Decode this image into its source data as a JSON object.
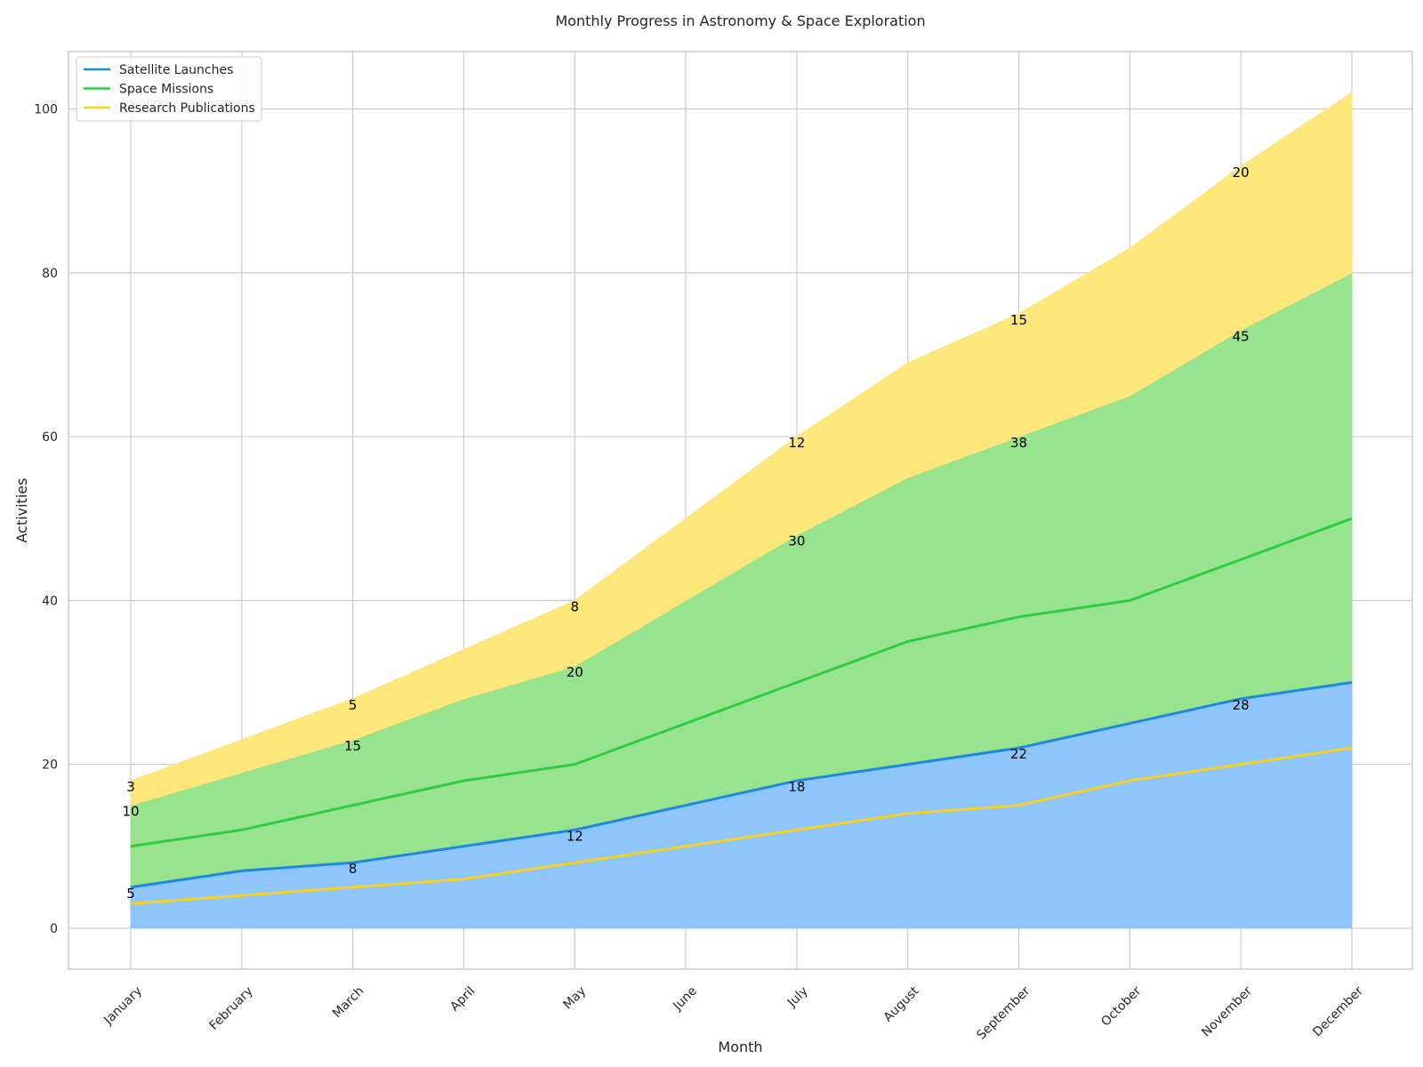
{
  "chart_data": {
    "type": "area",
    "stacked": true,
    "title": "Monthly Progress in Astronomy & Space Exploration",
    "xlabel": "Month",
    "ylabel": "Activities",
    "categories": [
      "January",
      "February",
      "March",
      "April",
      "May",
      "June",
      "July",
      "August",
      "September",
      "October",
      "November",
      "December"
    ],
    "ylim": [
      -5,
      107
    ],
    "yticks": [
      0,
      20,
      40,
      60,
      80,
      100
    ],
    "grid": true,
    "legend_position": "top-left",
    "series": [
      {
        "name": "Satellite Launches",
        "values": [
          5,
          7,
          8,
          10,
          12,
          15,
          18,
          20,
          22,
          25,
          28,
          30
        ],
        "color": "#1e88e5",
        "fill": "#8ec6fb"
      },
      {
        "name": "Space Missions",
        "values": [
          10,
          12,
          15,
          18,
          20,
          25,
          30,
          35,
          38,
          40,
          45,
          50
        ],
        "color": "#2ecc40",
        "fill": "#97e38e"
      },
      {
        "name": "Research Publications",
        "values": [
          3,
          4,
          5,
          6,
          8,
          10,
          12,
          14,
          15,
          18,
          20,
          22
        ],
        "color": "#f5d020",
        "fill": "#fde67a"
      }
    ],
    "annotation_every": 2
  }
}
